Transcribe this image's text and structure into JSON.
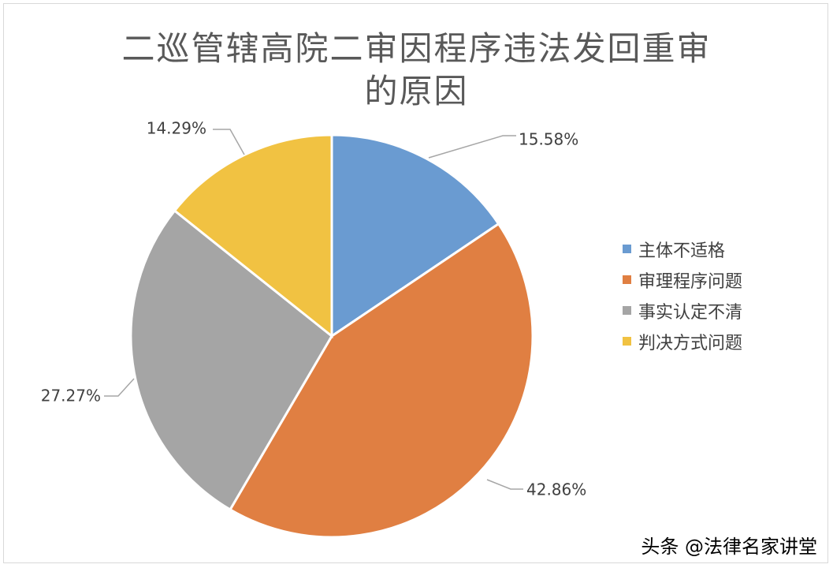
{
  "chart_data": {
    "type": "pie",
    "title_lines": [
      "二巡管辖高院二审因程序违法发回重审",
      "的原因"
    ],
    "categories": [
      "主体不适格",
      "审理程序问题",
      "事实认定不清",
      "判决方式问题"
    ],
    "values": [
      15.58,
      42.86,
      27.27,
      14.29
    ],
    "data_labels": [
      "15.58%",
      "42.86%",
      "27.27%",
      "14.29%"
    ],
    "colors": [
      "#6A9BD1",
      "#E07F42",
      "#A5A5A5",
      "#F1C242"
    ],
    "start_angle_deg": 0,
    "direction": "clockwise",
    "legend_position": "right"
  },
  "watermark": "头条 @法律名家讲堂"
}
